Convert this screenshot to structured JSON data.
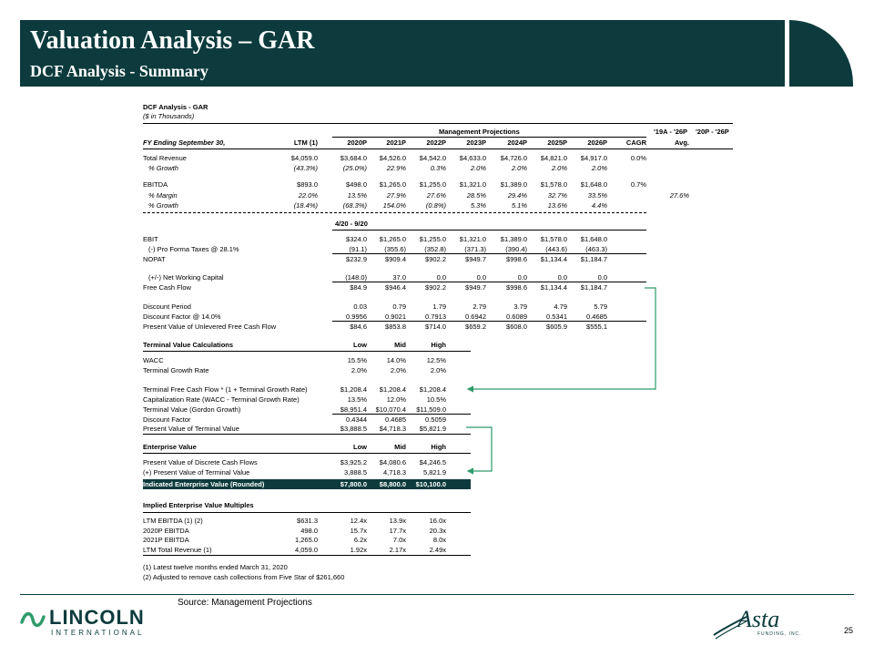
{
  "header": {
    "title": "Valuation Analysis – GAR",
    "subtitle": "DCF Analysis - Summary"
  },
  "sheet": {
    "title": "DCF Analysis - GAR",
    "units": "($ in Thousands)",
    "mgmt_label": "Management Projections",
    "cagr_range": "'19A - '26P",
    "avg_range": "'20P - '26P",
    "col_headers": [
      "FY Ending September 30,",
      "LTM (1)",
      "2020P",
      "2021P",
      "2022P",
      "2023P",
      "2024P",
      "2025P",
      "2026P",
      "CAGR",
      "Avg."
    ],
    "income_rows": [
      {
        "label": "Total Revenue",
        "v": [
          "$4,059.0",
          "$3,684.0",
          "$4,526.0",
          "$4,542.0",
          "$4,633.0",
          "$4,726.0",
          "$4,821.0",
          "$4,917.0",
          "0.0%",
          ""
        ]
      },
      {
        "label": "% Growth",
        "v": [
          "(43.3%)",
          "(25.0%)",
          "22.9%",
          "0.3%",
          "2.0%",
          "2.0%",
          "2.0%",
          "2.0%",
          "",
          ""
        ]
      },
      {
        "label": "EBITDA",
        "v": [
          "$893.0",
          "$498.0",
          "$1,265.0",
          "$1,255.0",
          "$1,321.0",
          "$1,389.0",
          "$1,578.0",
          "$1,648.0",
          "0.7%",
          ""
        ]
      },
      {
        "label": "% Margin",
        "v": [
          "22.0%",
          "13.5%",
          "27.9%",
          "27.6%",
          "28.5%",
          "29.4%",
          "32.7%",
          "33.5%",
          "",
          "27.6%"
        ]
      },
      {
        "label": "% Growth",
        "v": [
          "(18.4%)",
          "(68.3%)",
          "154.0%",
          "(0.8%)",
          "5.3%",
          "5.1%",
          "13.6%",
          "4.4%",
          "",
          ""
        ]
      }
    ],
    "stub_label": "4/20 - 9/20",
    "fcf_rows": [
      {
        "label": "EBIT",
        "v": [
          "$324.0",
          "$1,265.0",
          "$1,255.0",
          "$1,321.0",
          "$1,389.0",
          "$1,578.0",
          "$1,648.0"
        ]
      },
      {
        "label": "(-) Pro Forma Taxes @ 28.1%",
        "v": [
          "(91.1)",
          "(355.6)",
          "(352.8)",
          "(371.3)",
          "(390.4)",
          "(443.6)",
          "(463.3)"
        ]
      },
      {
        "label": "NOPAT",
        "v": [
          "$232.9",
          "$909.4",
          "$902.2",
          "$949.7",
          "$998.6",
          "$1,134.4",
          "$1,184.7"
        ]
      },
      {
        "label": "(+/-) Net Working Capital",
        "v": [
          "(148.0)",
          "37.0",
          "0.0",
          "0.0",
          "0.0",
          "0.0",
          "0.0"
        ]
      },
      {
        "label": "Free Cash Flow",
        "v": [
          "$84.9",
          "$946.4",
          "$902.2",
          "$949.7",
          "$998.6",
          "$1,134.4",
          "$1,184.7"
        ]
      },
      {
        "label": "Discount Period",
        "v": [
          "0.03",
          "0.79",
          "1.79",
          "2.79",
          "3.79",
          "4.79",
          "5.79"
        ]
      },
      {
        "label": "Discount Factor @ 14.0%",
        "v": [
          "0.9956",
          "0.9021",
          "0.7913",
          "0.6942",
          "0.6089",
          "0.5341",
          "0.4685"
        ]
      },
      {
        "label": "Present Value of Unlevered Free Cash Flow",
        "v": [
          "$84.6",
          "$853.8",
          "$714.0",
          "$659.2",
          "$608.0",
          "$605.9",
          "$555.1"
        ]
      }
    ],
    "tv_header": [
      "Terminal Value Calculations",
      "Low",
      "Mid",
      "High"
    ],
    "tv_rows": [
      {
        "label": "WACC",
        "v": [
          "15.5%",
          "14.0%",
          "12.5%"
        ]
      },
      {
        "label": "Terminal Growth Rate",
        "v": [
          "2.0%",
          "2.0%",
          "2.0%"
        ]
      },
      {
        "label": "Terminal Free Cash Flow * (1 + Terminal Growth Rate)",
        "v": [
          "$1,208.4",
          "$1,208.4",
          "$1,208.4"
        ]
      },
      {
        "label": "Capitalization Rate (WACC - Terminal Growth Rate)",
        "v": [
          "13.5%",
          "12.0%",
          "10.5%"
        ]
      },
      {
        "label": "Terminal Value (Gordon Growth)",
        "v": [
          "$8,951.4",
          "$10,070.4",
          "$11,509.0"
        ]
      },
      {
        "label": "Discount Factor",
        "v": [
          "0.4344",
          "0.4685",
          "0.5059"
        ]
      },
      {
        "label": "Present Value of Terminal Value",
        "v": [
          "$3,888.5",
          "$4,718.3",
          "$5,821.9"
        ]
      }
    ],
    "ev_header": [
      "Enterprise Value",
      "Low",
      "Mid",
      "High"
    ],
    "ev_rows": [
      {
        "label": "Present Value of Discrete Cash Flows",
        "v": [
          "$3,925.2",
          "$4,080.6",
          "$4,246.5"
        ]
      },
      {
        "label": "(+) Present Value of Terminal Value",
        "v": [
          "3,888.5",
          "4,718.3",
          "5,821.9"
        ]
      }
    ],
    "ev_total": {
      "label": "Indicated Enterprise Value (Rounded)",
      "v": [
        "$7,800.0",
        "$8,800.0",
        "$10,100.0"
      ]
    },
    "mult_header": "Implied Enterprise Value Multiples",
    "mult_rows": [
      {
        "label": "LTM EBITDA (1) (2)",
        "v": [
          "$631.3",
          "12.4x",
          "13.9x",
          "16.0x"
        ]
      },
      {
        "label": "2020P EBITDA",
        "v": [
          "498.0",
          "15.7x",
          "17.7x",
          "20.3x"
        ]
      },
      {
        "label": "2021P EBITDA",
        "v": [
          "1,265.0",
          "6.2x",
          "7.0x",
          "8.0x"
        ]
      },
      {
        "label": "LTM Total Revenue (1)",
        "v": [
          "4,059.0",
          "1.92x",
          "2.17x",
          "2.49x"
        ]
      }
    ],
    "footnotes": [
      "(1) Latest twelve months ended March 31, 2020",
      "(2) Adjusted to remove cash collections from Five Star of $261,660"
    ]
  },
  "footer": {
    "source": "Source: Management Projections",
    "lincoln": "LINCOLN",
    "international": "INTERNATIONAL",
    "asta": "Asta",
    "funding": "FUNDING, INC.",
    "page": "25"
  },
  "colors": {
    "brand": "#0d3b3d",
    "arrow": "#2e9b6a"
  }
}
